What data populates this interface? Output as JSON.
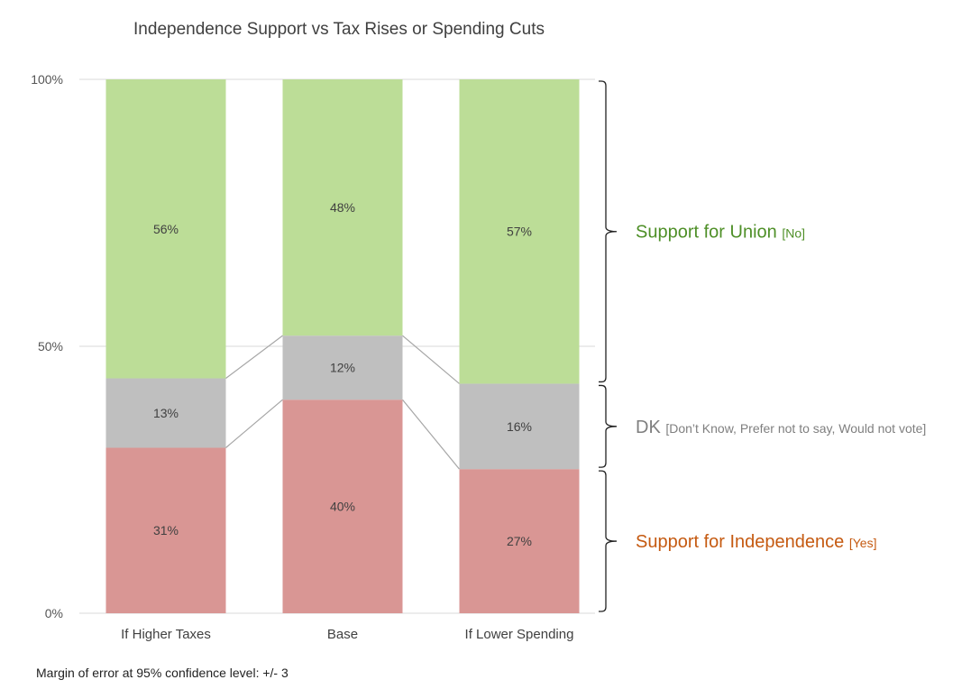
{
  "chart_data": {
    "type": "bar",
    "stacked": true,
    "title": "Independence Support vs Tax Rises or Spending Cuts",
    "categories": [
      "If Higher Taxes",
      "Base",
      "If Lower Spending"
    ],
    "series": [
      {
        "name": "Support for Independence",
        "values": [
          31,
          40,
          27
        ],
        "color": "#d99694"
      },
      {
        "name": "DK",
        "values": [
          13,
          12,
          16
        ],
        "color": "#bfbfbf"
      },
      {
        "name": "Support for Union",
        "values": [
          56,
          48,
          57
        ],
        "color": "#bcdd97"
      }
    ],
    "data_labels": [
      [
        "31%",
        "40%",
        "27%"
      ],
      [
        "13%",
        "12%",
        "16%"
      ],
      [
        "56%",
        "48%",
        "57%"
      ]
    ],
    "ylim": [
      0,
      100
    ],
    "yticks": [
      {
        "value": 0,
        "label": "0%"
      },
      {
        "value": 50,
        "label": "50%"
      },
      {
        "value": 100,
        "label": "100%"
      }
    ],
    "grid": true,
    "series_lines": true,
    "brackets": [
      {
        "label": "Support for Union",
        "tag": "[No]",
        "color": "#4e8f27",
        "segment": "union"
      },
      {
        "label": "DK",
        "tag": "[Don’t Know, Prefer not to say, Would not vote]",
        "color": "#7f7f7f",
        "segment": "dk"
      },
      {
        "label": "Support for Independence",
        "tag": "[Yes]",
        "color": "#c55a11",
        "segment": "yes"
      }
    ],
    "footnote": "Margin of error at 95% confidence level: +/- 3"
  }
}
